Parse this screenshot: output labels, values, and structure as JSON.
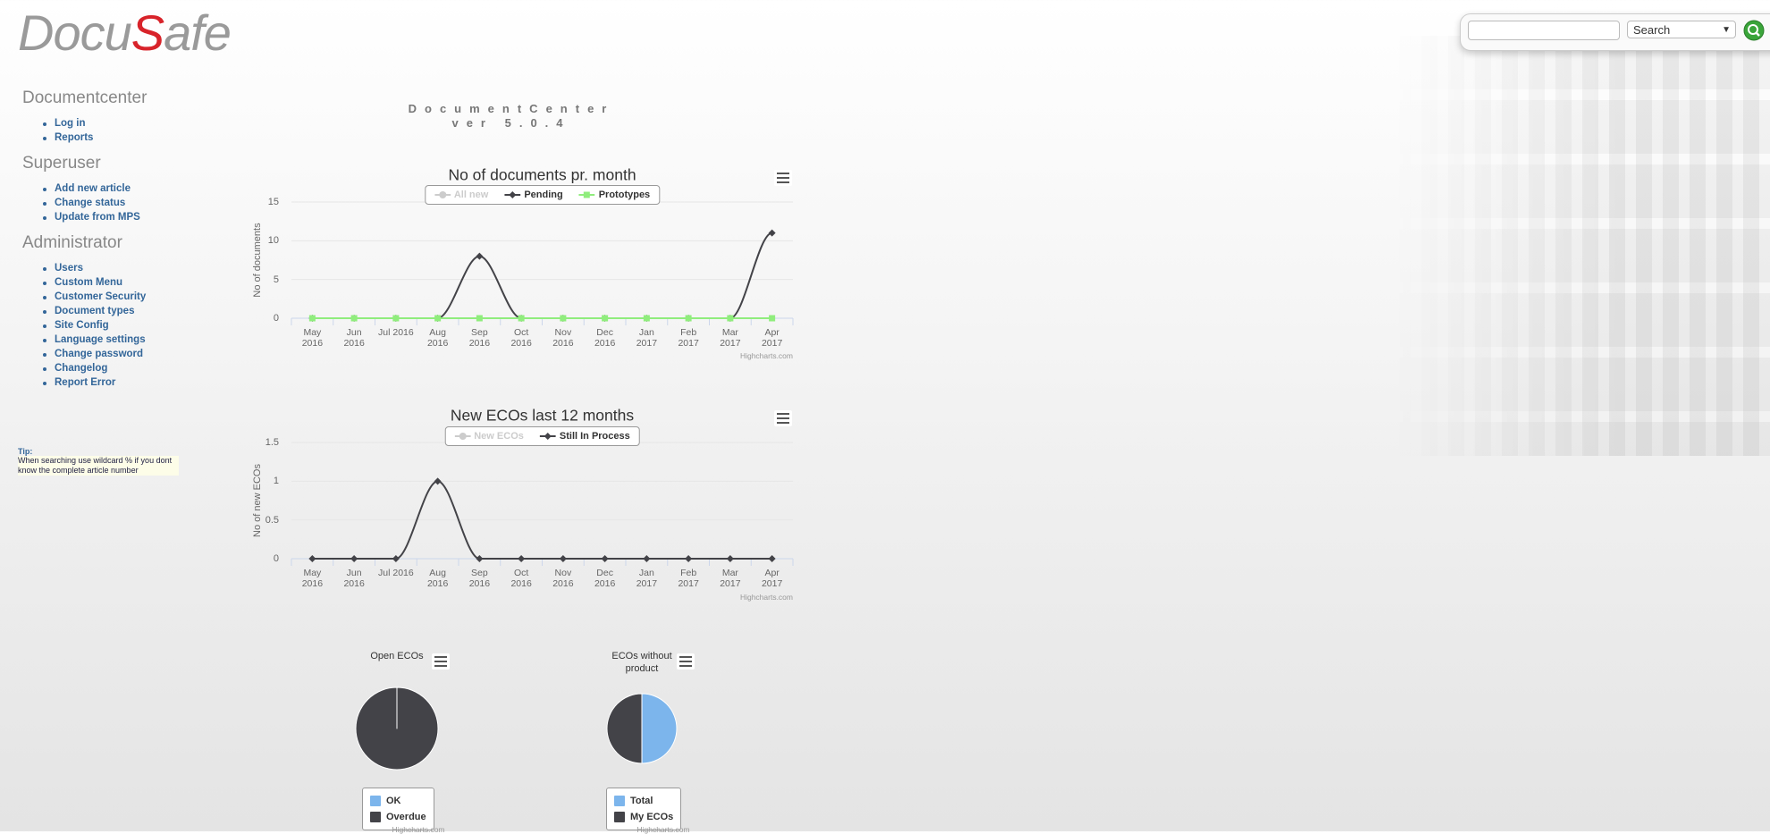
{
  "header": {
    "logo": [
      "Docu",
      "S",
      "afe"
    ],
    "search_select": "Search"
  },
  "app": {
    "title": "DocumentCenter",
    "version": "ver 5.0.4"
  },
  "sidebar": [
    {
      "heading": "Documentcenter",
      "links": [
        "Log in",
        "Reports"
      ]
    },
    {
      "heading": "Superuser",
      "links": [
        "Add new article",
        "Change status",
        "Update from MPS"
      ]
    },
    {
      "heading": "Administrator",
      "links": [
        "Users",
        "Custom Menu",
        "Customer Security",
        "Document types",
        "Site Config",
        "Language settings",
        "Change password",
        "Changelog",
        "Report Error"
      ]
    }
  ],
  "tip": {
    "label": "Tip:",
    "text": "When searching use wildcard % if you dont know the complete article number"
  },
  "chart_data": [
    {
      "type": "line",
      "title": "No of documents pr. month",
      "y_label": "No of documents",
      "categories": [
        "May 2016",
        "Jun 2016",
        "Jul 2016",
        "Aug 2016",
        "Sep 2016",
        "Oct 2016",
        "Nov 2016",
        "Dec 2016",
        "Jan 2017",
        "Feb 2017",
        "Mar 2017",
        "Apr 2017"
      ],
      "ylim": [
        0,
        15
      ],
      "yticks": [
        0,
        5,
        10,
        15
      ],
      "grid": true,
      "smooth": true,
      "series": [
        {
          "name": "All new",
          "visible": false,
          "color": "#cccccc",
          "marker": "circle"
        },
        {
          "name": "Pending",
          "color": "#434348",
          "marker": "diamond",
          "values": [
            0,
            0,
            0,
            0,
            8,
            0,
            0,
            0,
            0,
            0,
            0,
            11
          ]
        },
        {
          "name": "Prototypes",
          "color": "#90ed7d",
          "marker": "square",
          "values": [
            0,
            0,
            0,
            0,
            0,
            0,
            0,
            0,
            0,
            0,
            0,
            0
          ]
        }
      ],
      "credit": "Highcharts.com"
    },
    {
      "type": "line",
      "title": "New ECOs last 12 months",
      "y_label": "No of new ECOs",
      "categories": [
        "May 2016",
        "Jun 2016",
        "Jul 2016",
        "Aug 2016",
        "Sep 2016",
        "Oct 2016",
        "Nov 2016",
        "Dec 2016",
        "Jan 2017",
        "Feb 2017",
        "Mar 2017",
        "Apr 2017"
      ],
      "ylim": [
        0,
        1.5
      ],
      "yticks": [
        0,
        0.5,
        1,
        1.5
      ],
      "grid": true,
      "smooth": true,
      "series": [
        {
          "name": "New ECOs",
          "visible": false,
          "color": "#cccccc",
          "marker": "circle"
        },
        {
          "name": "Still In Process",
          "color": "#434348",
          "marker": "diamond",
          "values": [
            0,
            0,
            0,
            1,
            0,
            0,
            0,
            0,
            0,
            0,
            0,
            0
          ]
        }
      ],
      "credit": "Highcharts.com"
    },
    {
      "type": "pie",
      "title": "Open ECOs",
      "categories": [
        "OK",
        "Overdue"
      ],
      "values": [
        0,
        100
      ],
      "colors": [
        "#7cb5ec",
        "#434348"
      ],
      "credit": "Highcharts.com"
    },
    {
      "type": "pie",
      "title": "ECOs without product",
      "categories": [
        "Total",
        "My ECOs"
      ],
      "values": [
        50,
        50
      ],
      "colors": [
        "#7cb5ec",
        "#434348"
      ],
      "credit": "Highcharts.com"
    }
  ]
}
